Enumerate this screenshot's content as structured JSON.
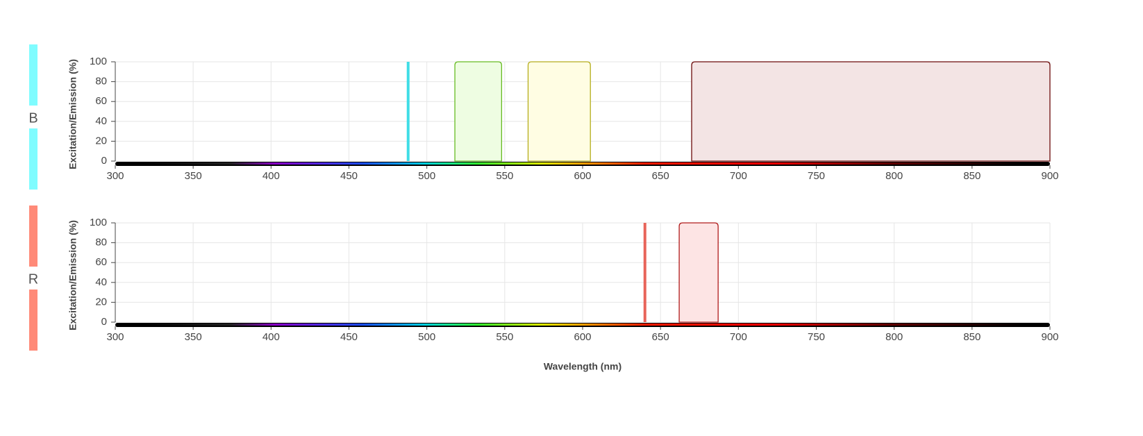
{
  "chart_data": [
    {
      "type": "spectrum",
      "label": "B",
      "side_color": "#7ffcff",
      "ylabel": "Excitation/Emission (%)",
      "xlim": [
        300,
        900
      ],
      "xticks": [
        300,
        350,
        400,
        450,
        500,
        550,
        600,
        650,
        700,
        750,
        800,
        850,
        900
      ],
      "ylim": [
        0,
        100
      ],
      "yticks": [
        0,
        20,
        40,
        60,
        80,
        100
      ],
      "grid": true,
      "lasers": [
        {
          "x": 488,
          "value": 100,
          "color": "#3fdde6"
        }
      ],
      "bands": [
        {
          "x": [
            518,
            548
          ],
          "value": 100,
          "color": "#66bb22",
          "fill": "#eefde2"
        },
        {
          "x": [
            565,
            605
          ],
          "value": 100,
          "color": "#b5ad1c",
          "fill": "#fffde3"
        },
        {
          "x": [
            670,
            900
          ],
          "value": 100,
          "color": "#6b0a0a",
          "fill": "#f3e4e4"
        }
      ]
    },
    {
      "type": "spectrum",
      "label": "R",
      "side_color": "#ff8a78",
      "ylabel": "Excitation/Emission (%)",
      "xlabel": "Wavelength (nm)",
      "xlim": [
        300,
        900
      ],
      "xticks": [
        300,
        350,
        400,
        450,
        500,
        550,
        600,
        650,
        700,
        750,
        800,
        850,
        900
      ],
      "ylim": [
        0,
        100
      ],
      "yticks": [
        0,
        20,
        40,
        60,
        80,
        100
      ],
      "grid": true,
      "lasers": [
        {
          "x": 640,
          "value": 100,
          "color": "#e8645a"
        }
      ],
      "bands": [
        {
          "x": [
            662,
            687
          ],
          "value": 100,
          "color": "#b01a1a",
          "fill": "#fde4e4"
        }
      ]
    }
  ]
}
